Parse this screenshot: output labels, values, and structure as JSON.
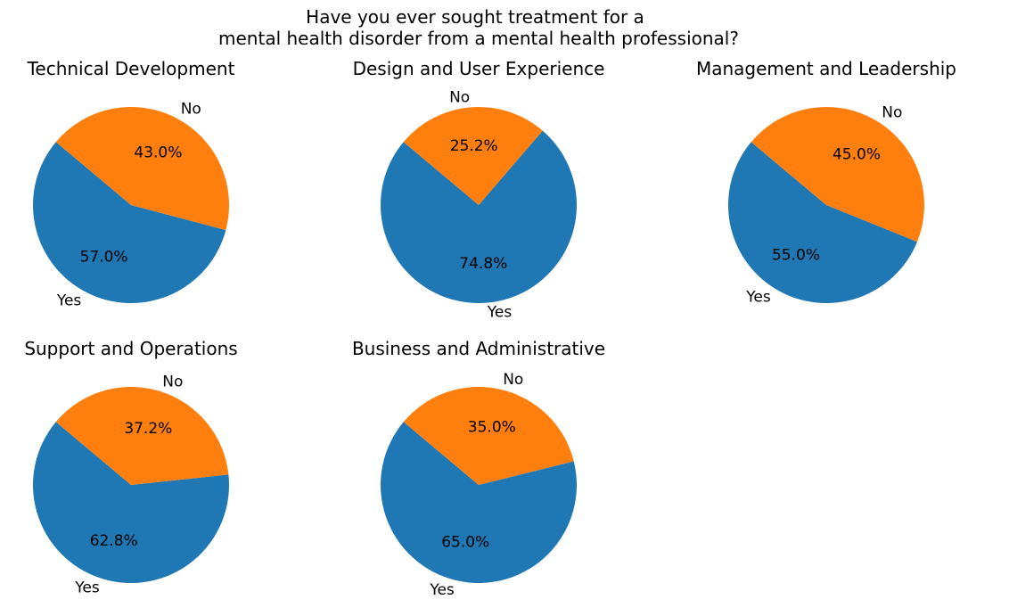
{
  "chart_data": {
    "type": "pie",
    "title_line1": "Have you ever sought treatment for a",
    "title_line2": "mental health disorder from a mental health professional?",
    "categories": [
      "Yes",
      "No"
    ],
    "colors": {
      "Yes": "#1f77b4",
      "No": "#ff7f0e"
    },
    "start_angle_deg": 140,
    "charts": [
      {
        "title": "Technical Development",
        "values": [
          57.0,
          43.0
        ],
        "labels": [
          "57.0%",
          "43.0%"
        ]
      },
      {
        "title": "Design and User Experience",
        "values": [
          74.8,
          25.2
        ],
        "labels": [
          "74.8%",
          "25.2%"
        ]
      },
      {
        "title": "Management and Leadership",
        "values": [
          55.0,
          45.0
        ],
        "labels": [
          "55.0%",
          "45.0%"
        ]
      },
      {
        "title": "Support and Operations",
        "values": [
          62.8,
          37.2
        ],
        "labels": [
          "62.8%",
          "37.2%"
        ]
      },
      {
        "title": "Business and Administrative",
        "values": [
          65.0,
          35.0
        ],
        "labels": [
          "65.0%",
          "35.0%"
        ]
      }
    ]
  }
}
